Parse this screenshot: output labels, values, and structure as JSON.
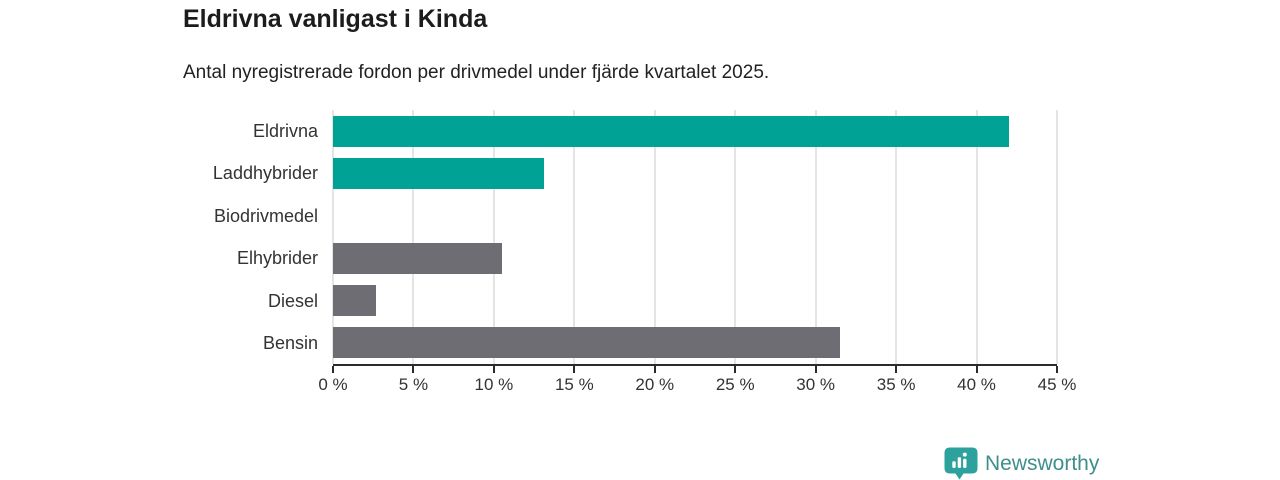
{
  "chart_data": {
    "type": "bar",
    "orientation": "horizontal",
    "title": "Eldrivna vanligast i Kinda",
    "subtitle": "Antal nyregistrerade fordon per drivmedel under fjärde kvartalet 2025.",
    "categories": [
      "Eldrivna",
      "Laddhybrider",
      "Biodrivmedel",
      "Elhybrider",
      "Diesel",
      "Bensin"
    ],
    "values": [
      42.0,
      13.1,
      0,
      10.5,
      2.7,
      31.5
    ],
    "unit": "%",
    "xlim": [
      0,
      45
    ],
    "x_ticks": [
      0,
      5,
      10,
      15,
      20,
      25,
      30,
      35,
      40,
      45
    ],
    "x_tick_labels": [
      "0 %",
      "5 %",
      "10 %",
      "15 %",
      "20 %",
      "25 %",
      "30 %",
      "35 %",
      "40 %",
      "45 %"
    ],
    "bar_colors": [
      "#00a296",
      "#00a296",
      "#6e6d73",
      "#6e6d73",
      "#6e6d73",
      "#6e6d73"
    ],
    "colors": {
      "highlight": "#00a296",
      "default": "#6e6d73",
      "gridline": "#e4e4e4",
      "axis": "#2b2b2b"
    },
    "grid": true,
    "legend": false
  },
  "footer": {
    "brand": "Newsworthy",
    "brand_text_color": "#3e8e8b",
    "brand_icon_color": "#2da19b"
  }
}
